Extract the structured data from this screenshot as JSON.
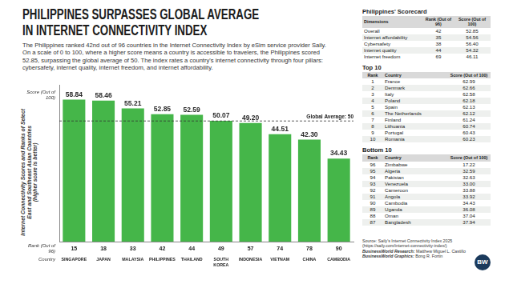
{
  "title": "PHILIPPINES SURPASSES GLOBAL AVERAGE IN INTERNET CONNECTIVITY INDEX",
  "intro": "The Philippines ranked 42nd out of 96 countries in the Internet Connectivity Index by eSim service provider Saily. On a scale of 0 to 100, where a higher score means a country is accessible to travelers, the Philippines scored 52.85, surpassing the global average of 50. The index rates a country's internet connectivity through four pillars: cybersafety, internet quality, internet freedom, and internet affordability.",
  "chart_data": {
    "type": "bar",
    "ylabel": "Internet Connectivity Scores and Ranks of Select East and Southeast Asian Countries",
    "ylabel_note": "(higher score is better)",
    "score_label": "Score (Out of 100)",
    "rank_label": "Rank (Out of 96)",
    "category_label": "Country",
    "categories": [
      "SINGAPORE",
      "JAPAN",
      "MALAYSIA",
      "PHILIPPINES",
      "THAILAND",
      "SOUTH KOREA",
      "INDONESIA",
      "VIETNAM",
      "CHINA",
      "CAMBODIA"
    ],
    "values": [
      58.84,
      58.46,
      55.21,
      52.85,
      52.59,
      50.07,
      49.2,
      44.51,
      42.3,
      34.43
    ],
    "value_labels": [
      "58.84",
      "58.46",
      "55.21",
      "52.85",
      "52.59",
      "50.07",
      "49.20",
      "44.51",
      "42.30",
      "34.43"
    ],
    "ranks": [
      15,
      18,
      33,
      42,
      44,
      49,
      57,
      74,
      78,
      90
    ],
    "color": "#45b649",
    "ylim": [
      0,
      65
    ],
    "grid": false,
    "data_labels": true,
    "tick_labels": "x",
    "reference_line": {
      "value": 50,
      "label": "Global Average: 50"
    }
  },
  "scorecard": {
    "title": "Philippines' Scorecard",
    "header": [
      "Dimensions",
      "Rank (Out of 96)",
      "Score (Out of 100)"
    ],
    "rows": [
      [
        "Overall",
        "42",
        "52.85"
      ],
      [
        "Internet affordability",
        "35",
        "54.56"
      ],
      [
        "Cybersafety",
        "38",
        "56.40"
      ],
      [
        "Internet quality",
        "44",
        "54.32"
      ],
      [
        "Internet freedom",
        "69",
        "46.11"
      ]
    ]
  },
  "top10": {
    "title": "Top 10",
    "header": [
      "Rank",
      "Country",
      "Score (Out of 100)"
    ],
    "rows": [
      [
        "1",
        "France",
        "62.99"
      ],
      [
        "2",
        "Denmark",
        "62.66"
      ],
      [
        "3",
        "Italy",
        "62.58"
      ],
      [
        "4",
        "Poland",
        "62.18"
      ],
      [
        "5",
        "Spain",
        "62.13"
      ],
      [
        "6",
        "The Netherlands",
        "62.12"
      ],
      [
        "7",
        "Finland",
        "61.24"
      ],
      [
        "8",
        "Lithuania",
        "60.74"
      ],
      [
        "9",
        "Portugal",
        "60.43"
      ],
      [
        "10",
        "Romania",
        "60.23"
      ]
    ]
  },
  "bottom10": {
    "title": "Bottom 10",
    "header": [
      "Rank",
      "Country",
      "Score (Out of 100)"
    ],
    "rows": [
      [
        "96",
        "Zimbabwe",
        "17.22"
      ],
      [
        "95",
        "Algeria",
        "32.59"
      ],
      [
        "94",
        "Pakistan",
        "32.63"
      ],
      [
        "93",
        "Venezuela",
        "33.00"
      ],
      [
        "92",
        "Cameroon",
        "33.88"
      ],
      [
        "91",
        "Angola",
        "33.92"
      ],
      [
        "90",
        "Cambodia",
        "34.43"
      ],
      [
        "89",
        "Uganda",
        "36.08"
      ],
      [
        "88",
        "Oman",
        "37.04"
      ],
      [
        "87",
        "Bangladesh",
        "37.94"
      ]
    ]
  },
  "source": "Source: Saily's Internet Connectivity Index 2025 (https://saily.com/internet-connectivity-index/)",
  "credits": [
    {
      "label": "BusinessWorld Research:",
      "name": "Matthew Miguel L. Castillo"
    },
    {
      "label": "BusinessWorld Graphics:",
      "name": "Bong R. Fortin"
    }
  ],
  "logo": "BW"
}
